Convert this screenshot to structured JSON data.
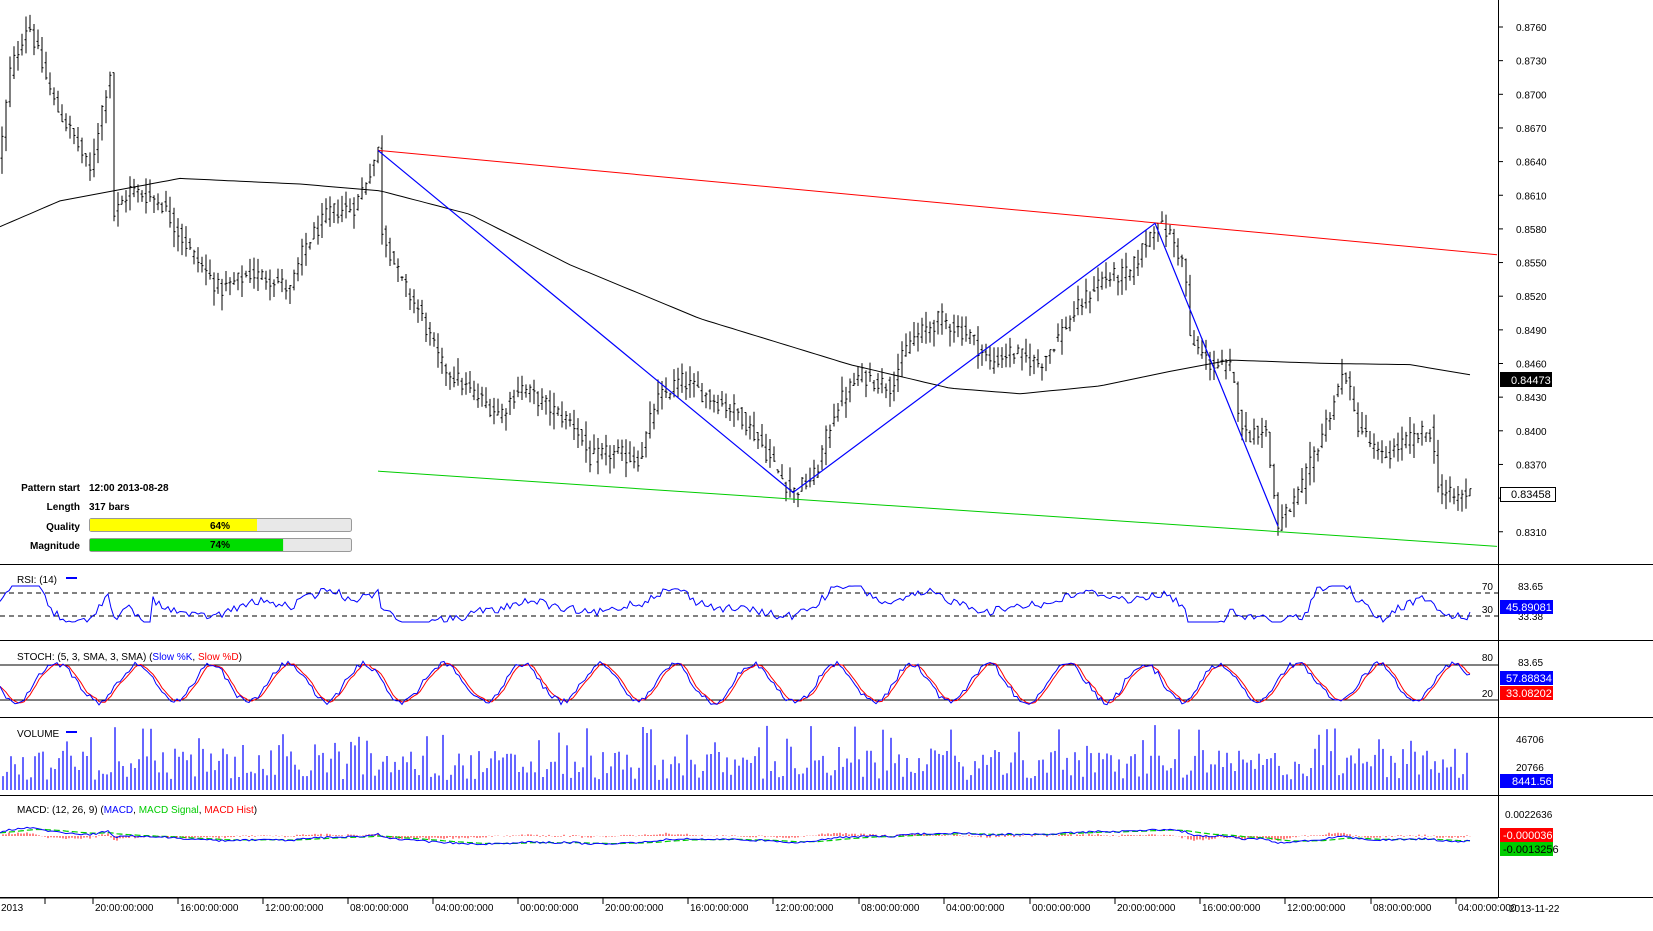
{
  "chart_data": {
    "type": "candlestick",
    "main": {
      "y_ticks": [
        "0.8760",
        "0.8730",
        "0.8700",
        "0.8670",
        "0.8640",
        "0.8610",
        "0.8580",
        "0.8550",
        "0.8520",
        "0.8490",
        "0.8460",
        "0.8430",
        "0.8400",
        "0.8370",
        "0.8340",
        "0.8310"
      ],
      "ylim": [
        0.8295,
        0.8775
      ],
      "current_price": "0.84473",
      "last_price": "0.83458",
      "price_path": [
        [
          0,
          0.8645
        ],
        [
          10,
          0.872
        ],
        [
          28,
          0.8765
        ],
        [
          40,
          0.873
        ],
        [
          55,
          0.869
        ],
        [
          75,
          0.866
        ],
        [
          90,
          0.863
        ],
        [
          100,
          0.868
        ],
        [
          110,
          0.872
        ],
        [
          112,
          0.859
        ],
        [
          130,
          0.8615
        ],
        [
          160,
          0.8605
        ],
        [
          190,
          0.856
        ],
        [
          220,
          0.8525
        ],
        [
          250,
          0.854
        ],
        [
          275,
          0.8535
        ],
        [
          290,
          0.8525
        ],
        [
          305,
          0.8565
        ],
        [
          330,
          0.8595
        ],
        [
          355,
          0.86
        ],
        [
          378,
          0.865
        ],
        [
          382,
          0.858
        ],
        [
          400,
          0.8535
        ],
        [
          420,
          0.8505
        ],
        [
          440,
          0.846
        ],
        [
          470,
          0.8435
        ],
        [
          500,
          0.8415
        ],
        [
          520,
          0.844
        ],
        [
          550,
          0.842
        ],
        [
          575,
          0.8405
        ],
        [
          590,
          0.8375
        ],
        [
          610,
          0.838
        ],
        [
          640,
          0.8375
        ],
        [
          655,
          0.8425
        ],
        [
          680,
          0.8445
        ],
        [
          710,
          0.843
        ],
        [
          740,
          0.8415
        ],
        [
          760,
          0.839
        ],
        [
          780,
          0.836
        ],
        [
          793,
          0.8345
        ],
        [
          815,
          0.836
        ],
        [
          835,
          0.842
        ],
        [
          860,
          0.845
        ],
        [
          890,
          0.844
        ],
        [
          910,
          0.848
        ],
        [
          940,
          0.85
        ],
        [
          970,
          0.8485
        ],
        [
          990,
          0.846
        ],
        [
          1010,
          0.847
        ],
        [
          1040,
          0.846
        ],
        [
          1070,
          0.85
        ],
        [
          1100,
          0.8535
        ],
        [
          1130,
          0.854
        ],
        [
          1155,
          0.8585
        ],
        [
          1170,
          0.8575
        ],
        [
          1185,
          0.8545
        ],
        [
          1190,
          0.848
        ],
        [
          1210,
          0.846
        ],
        [
          1230,
          0.8455
        ],
        [
          1245,
          0.8395
        ],
        [
          1265,
          0.8405
        ],
        [
          1278,
          0.8315
        ],
        [
          1300,
          0.8345
        ],
        [
          1325,
          0.8405
        ],
        [
          1345,
          0.8455
        ],
        [
          1355,
          0.841
        ],
        [
          1380,
          0.8375
        ],
        [
          1405,
          0.839
        ],
        [
          1430,
          0.84
        ],
        [
          1440,
          0.8345
        ],
        [
          1455,
          0.834
        ],
        [
          1470,
          0.8345
        ]
      ],
      "ma_path": [
        [
          0,
          0.8582
        ],
        [
          60,
          0.8605
        ],
        [
          180,
          0.8625
        ],
        [
          300,
          0.862
        ],
        [
          380,
          0.8614
        ],
        [
          470,
          0.8593
        ],
        [
          570,
          0.8548
        ],
        [
          700,
          0.85
        ],
        [
          850,
          0.8459
        ],
        [
          950,
          0.8438
        ],
        [
          1020,
          0.8433
        ],
        [
          1100,
          0.844
        ],
        [
          1170,
          0.8453
        ],
        [
          1230,
          0.8463
        ],
        [
          1330,
          0.846
        ],
        [
          1410,
          0.8459
        ],
        [
          1470,
          0.845
        ]
      ],
      "resistance_line": [
        [
          378,
          0.865
        ],
        [
          1497,
          0.8557
        ]
      ],
      "support_line": [
        [
          378,
          0.8364
        ],
        [
          1497,
          0.8297
        ]
      ],
      "zigzag": [
        [
          378,
          0.865
        ],
        [
          793,
          0.8345
        ],
        [
          1155,
          0.8585
        ],
        [
          1278,
          0.8315
        ]
      ]
    },
    "pattern_info": {
      "pattern_start_label": "Pattern start",
      "pattern_start_value": "12:00 2013-08-28",
      "length_label": "Length",
      "length_value": "317 bars",
      "quality_label": "Quality",
      "quality_value": "64%",
      "quality_fraction": 0.64,
      "magnitude_label": "Magnitude",
      "magnitude_value": "74%",
      "magnitude_fraction": 0.74
    },
    "rsi": {
      "title": "RSI: (14)",
      "level_high": "70",
      "level_low": "30",
      "scale_label": "83.65",
      "scale_label_2": "33.38",
      "value": "45.89081"
    },
    "stoch": {
      "title_prefix": "STOCH: (5, 3, SMA, 3, SMA) (",
      "k_label": "Slow %K",
      "sep": ", ",
      "d_label": "Slow %D",
      "title_suffix": ")",
      "level_high": "80",
      "level_low": "20",
      "scale_label": "83.65",
      "k_value": "57.88834",
      "d_value": "33.08202"
    },
    "volume": {
      "title": "VOLUME",
      "scale_high": "46706",
      "scale_mid": "20766",
      "value": "8441.56"
    },
    "macd": {
      "title_prefix": "MACD: (12, 26, 9) (",
      "macd_label": "MACD",
      "sep1": ", ",
      "signal_label": "MACD Signal",
      "sep2": ", ",
      "hist_label": "MACD Hist",
      "title_suffix": ")",
      "scale_high": "0.0022636",
      "hist_value": "-0.0000368",
      "signal_value": "-0.0013256"
    },
    "x_ticks": [
      {
        "label": "2013",
        "x": 0
      },
      {
        "label": "20:00:00:000",
        "x": 48
      },
      {
        "label": "16:00:00:000",
        "x": 133
      },
      {
        "label": "12:00:00:000",
        "x": 218
      },
      {
        "label": "08:00:00:000",
        "x": 303
      },
      {
        "label": "04:00:00:000",
        "x": 388
      },
      {
        "label": "00:00:00:000",
        "x": 473
      },
      {
        "label": "20:00:00:000",
        "x": 558
      },
      {
        "label": "16:00:00:000",
        "x": 643
      },
      {
        "label": "12:00:00:000",
        "x": 728
      },
      {
        "label": "08:00:00:000",
        "x": 814
      },
      {
        "label": "04:00:00:000",
        "x": 899
      },
      {
        "label": "00:00:00:000",
        "x": 985
      },
      {
        "label": "20:00:00:000",
        "x": 1070
      },
      {
        "label": "16:00:00:000",
        "x": 1155
      },
      {
        "label": "12:00:00:000",
        "x": 1240
      },
      {
        "label": "08:00:00:000",
        "x": 1326
      },
      {
        "label": "04:00:00:000",
        "x": 1411
      }
    ],
    "x_end_label": "2013-11-22",
    "colors": {
      "candle": "#000000",
      "ma": "#000000",
      "resistance": "#ff0000",
      "support": "#00cc00",
      "zigzag": "#0000ff",
      "indicator_blue": "#0000ff",
      "indicator_red": "#ff0000",
      "indicator_green": "#00cc00",
      "quality": "#ffff00",
      "magnitude": "#00dd00"
    }
  }
}
